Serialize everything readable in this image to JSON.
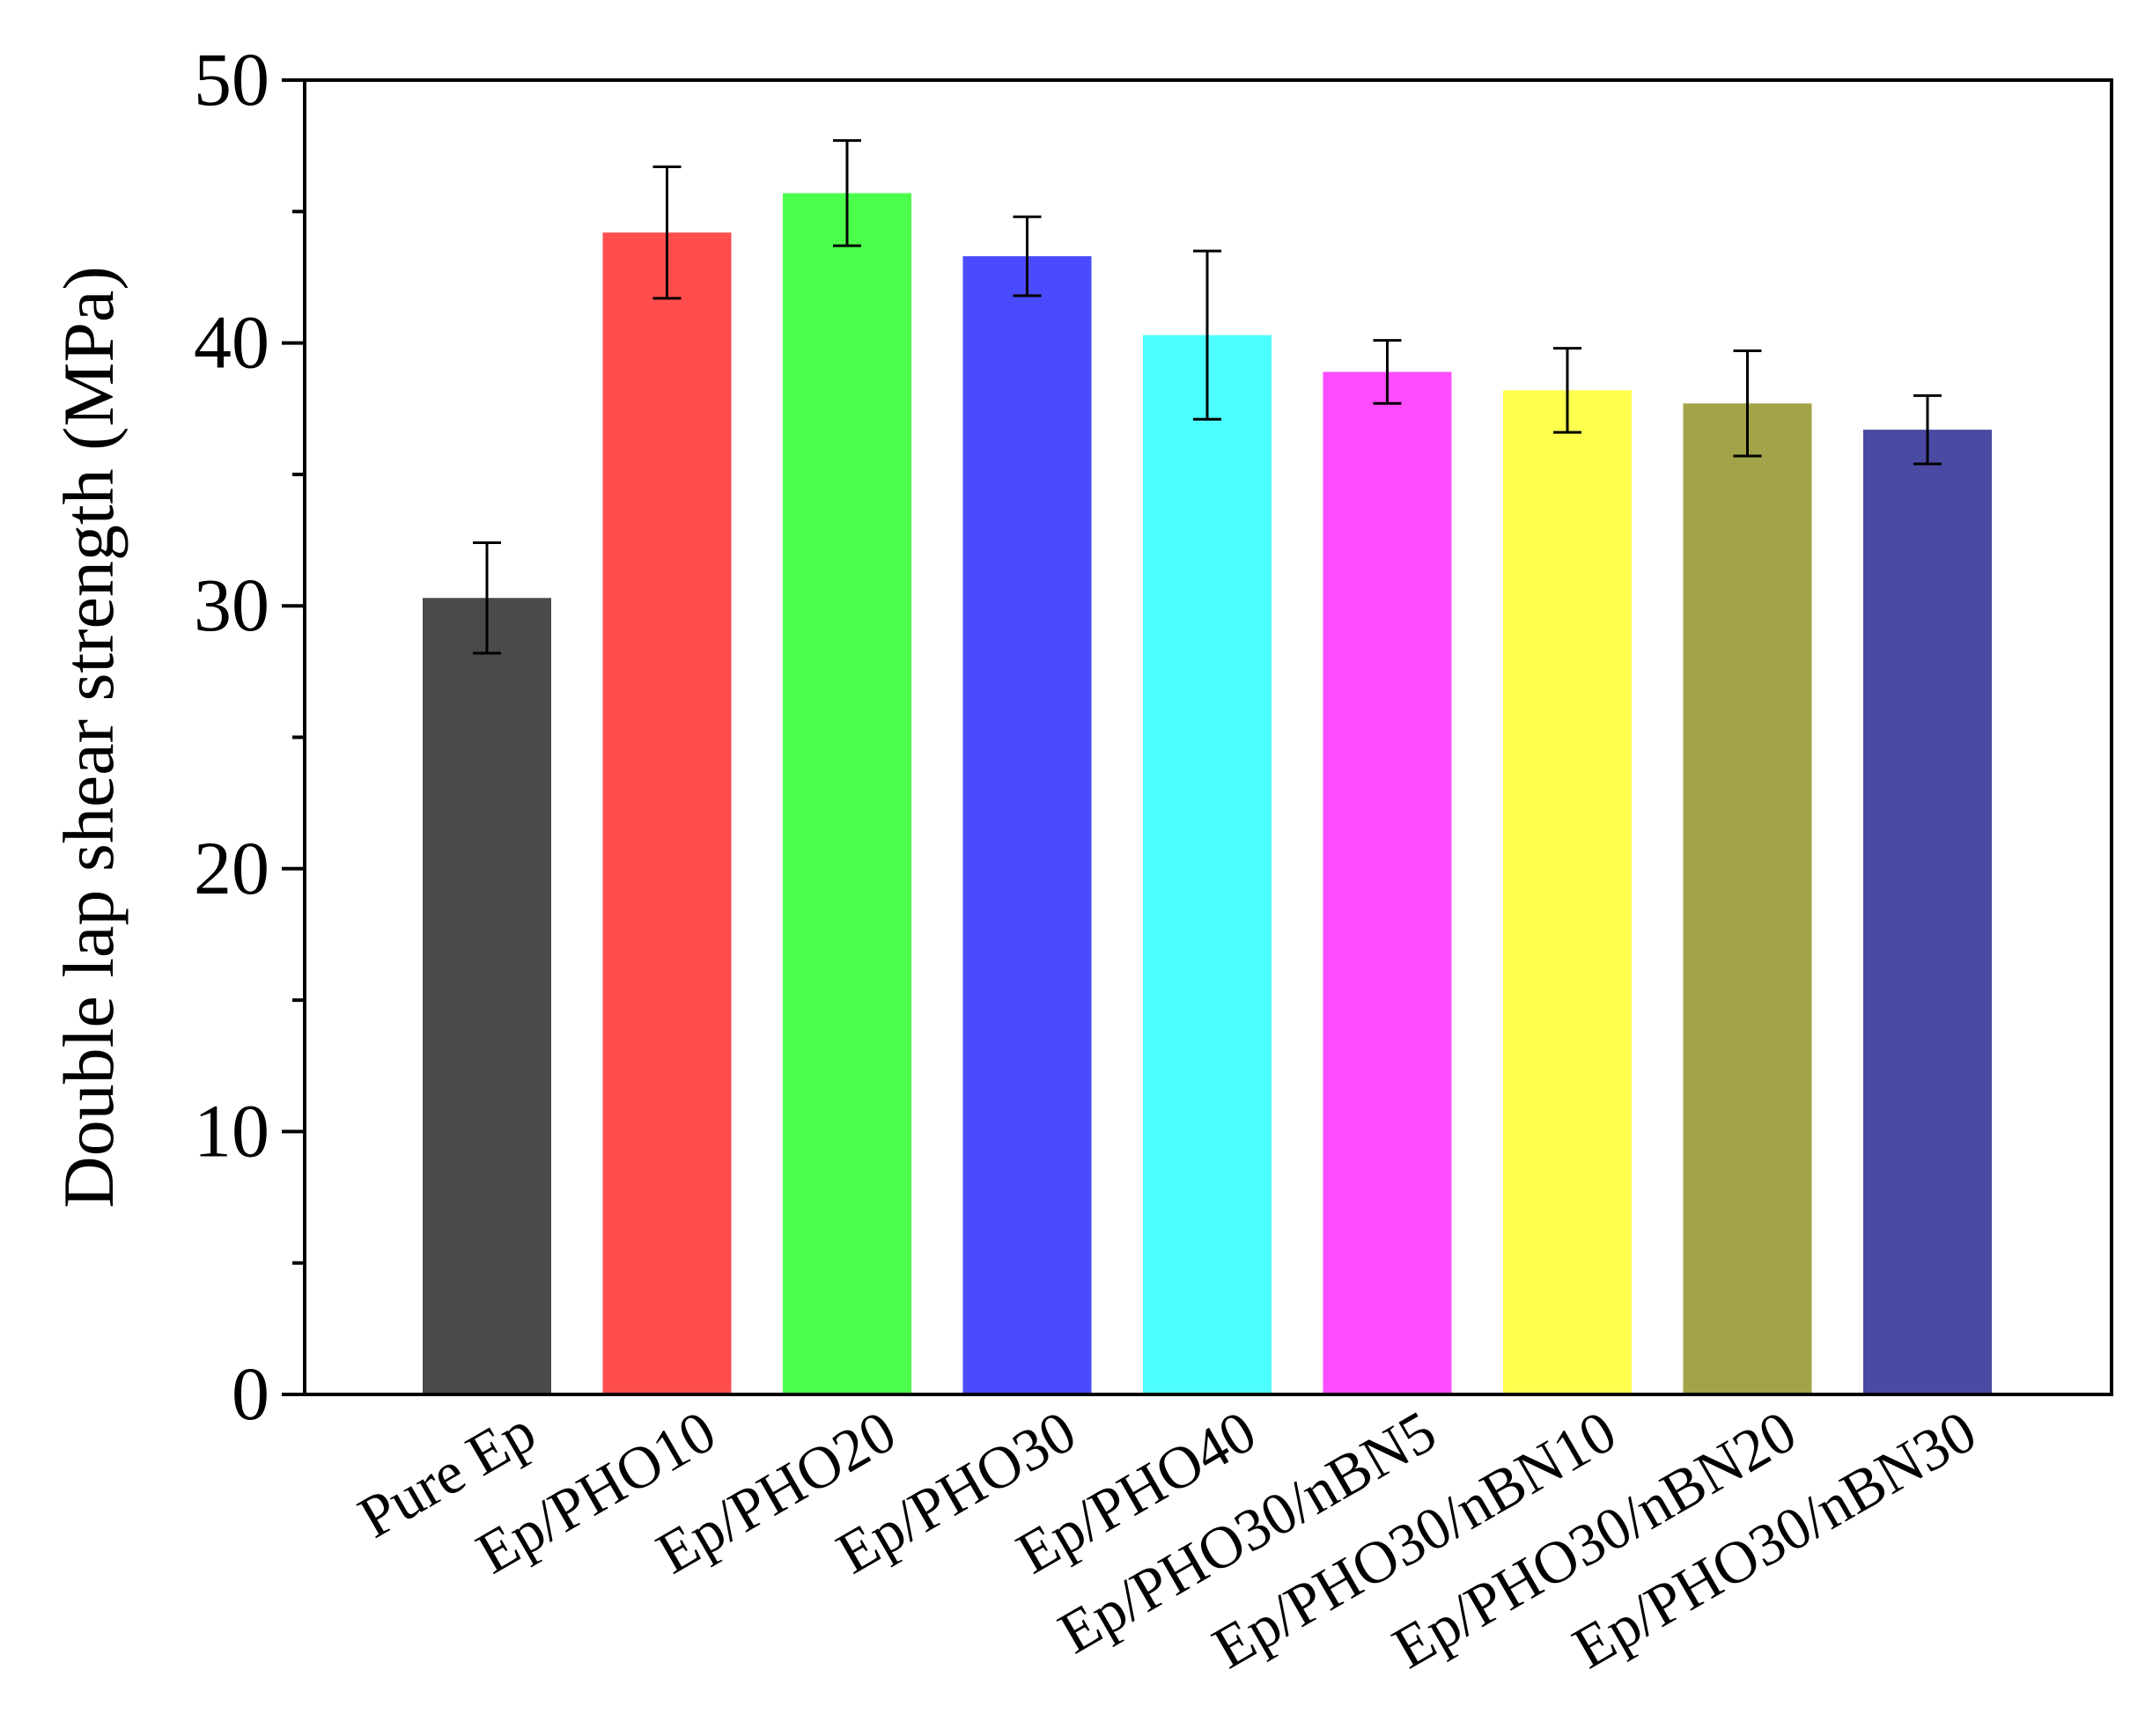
{
  "chart_data": {
    "type": "bar",
    "title": "",
    "xlabel": "",
    "ylabel": "Double lap shear strength (MPa)",
    "ylim": [
      0,
      50
    ],
    "yticks": [
      0,
      10,
      20,
      30,
      40,
      50
    ],
    "yminor_step": 5,
    "grid": false,
    "legend": "none",
    "categories": [
      "Pure Ep",
      "Ep/PHO10",
      "Ep/PHO20",
      "Ep/PHO30",
      "Ep/PHO40",
      "Ep/PHO30/nBN5",
      "Ep/PHO30/nBN10",
      "Ep/PHO30/nBN20",
      "Ep/PHO30/nBN30"
    ],
    "values": [
      30.3,
      44.2,
      45.7,
      43.3,
      40.3,
      38.9,
      38.2,
      37.7,
      36.7
    ],
    "errors": [
      2.1,
      2.5,
      2.0,
      1.5,
      3.2,
      1.2,
      1.6,
      2.0,
      1.3
    ],
    "colors": [
      "#4a4a4a",
      "#ff4d4d",
      "#4dff4d",
      "#4a4aff",
      "#4dffff",
      "#ff4dff",
      "#ffff4d",
      "#a3a34a",
      "#4a4aa3"
    ]
  }
}
